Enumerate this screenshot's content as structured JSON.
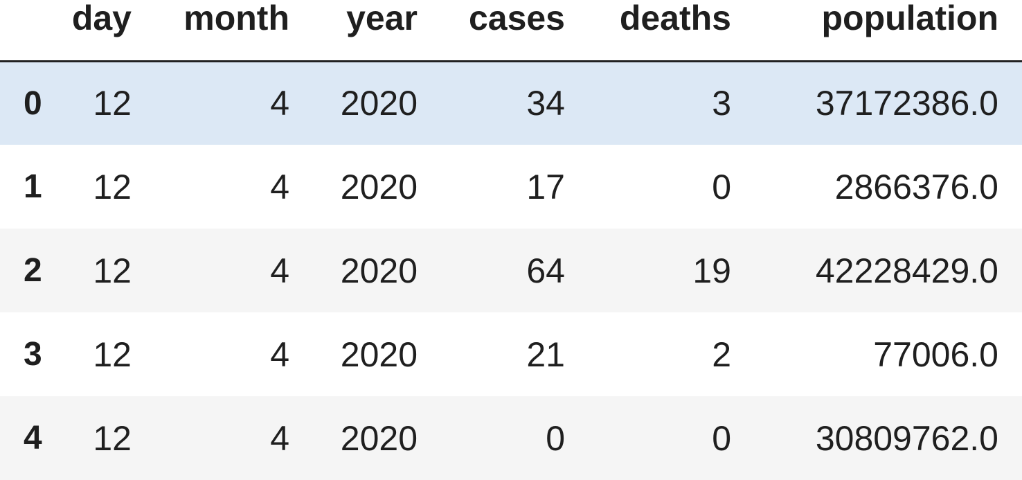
{
  "table": {
    "columns": {
      "index": "",
      "day": "day",
      "month": "month",
      "year": "year",
      "cases": "cases",
      "deaths": "deaths",
      "population": "population"
    },
    "rows": [
      {
        "index": "0",
        "day": "12",
        "month": "4",
        "year": "2020",
        "cases": "34",
        "deaths": "3",
        "population": "37172386.0"
      },
      {
        "index": "1",
        "day": "12",
        "month": "4",
        "year": "2020",
        "cases": "17",
        "deaths": "0",
        "population": "2866376.0"
      },
      {
        "index": "2",
        "day": "12",
        "month": "4",
        "year": "2020",
        "cases": "64",
        "deaths": "19",
        "population": "42228429.0"
      },
      {
        "index": "3",
        "day": "12",
        "month": "4",
        "year": "2020",
        "cases": "21",
        "deaths": "2",
        "population": "77006.0"
      },
      {
        "index": "4",
        "day": "12",
        "month": "4",
        "year": "2020",
        "cases": "0",
        "deaths": "0",
        "population": "30809762.0"
      }
    ],
    "colors": {
      "highlighted_row": "#dce8f5",
      "striped_row": "#f5f5f5",
      "header_border": "#222222"
    }
  }
}
